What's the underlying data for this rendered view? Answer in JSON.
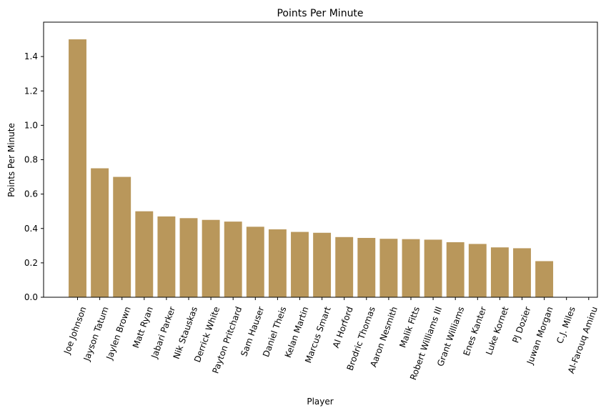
{
  "chart_data": {
    "type": "bar",
    "title": "Points Per Minute",
    "xlabel": "Player",
    "ylabel": "Points Per Minute",
    "ylim": [
      0,
      1.6
    ],
    "yticks": [
      0.0,
      0.2,
      0.4,
      0.6,
      0.8,
      1.0,
      1.2,
      1.4
    ],
    "ytick_labels": [
      "0.0",
      "0.2",
      "0.4",
      "0.6",
      "0.8",
      "1.0",
      "1.2",
      "1.4"
    ],
    "bar_color": "#b9975b",
    "categories": [
      "Joe Johnson",
      "Jayson Tatum",
      "Jaylen Brown",
      "Matt Ryan",
      "Jabari Parker",
      "Nik Stauskas",
      "Derrick White",
      "Payton Pritchard",
      "Sam Hauser",
      "Daniel Theis",
      "Kelan Martin",
      "Marcus Smart",
      "Al Horford",
      "Brodric Thomas",
      "Aaron Nesmith",
      "Malik Fitts",
      "Robert Williams III",
      "Grant Williams",
      "Enes Kanter",
      "Luke Kornet",
      "PJ Dozier",
      "Juwan Morgan",
      "C.J. Miles",
      "Al-Farouq Aminu"
    ],
    "values": [
      1.5,
      0.75,
      0.7,
      0.5,
      0.47,
      0.46,
      0.45,
      0.44,
      0.41,
      0.395,
      0.38,
      0.375,
      0.35,
      0.345,
      0.34,
      0.338,
      0.335,
      0.32,
      0.31,
      0.29,
      0.285,
      0.21,
      0.0,
      0.0
    ],
    "grid": false
  }
}
